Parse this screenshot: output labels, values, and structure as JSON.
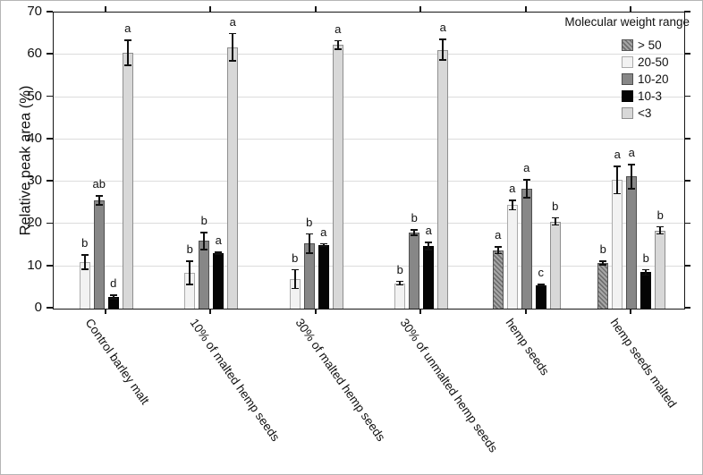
{
  "chart_data": {
    "type": "bar",
    "title": "",
    "ylabel": "Relative peak area (%)",
    "xlabel": "",
    "ylim": [
      0,
      70
    ],
    "ytick_step": 10,
    "yticks": [
      0,
      10,
      20,
      30,
      40,
      50,
      60,
      70
    ],
    "grid": true,
    "legend_title": "Molecular weight range",
    "legend_position": "top-right",
    "categories": [
      "Control barley malt",
      "10% of malted hemp seeds",
      "30% of malted hemp seeds",
      "30% of unmalted hemp seeds",
      "hemp seeds",
      "hemp seeds malted"
    ],
    "series": [
      {
        "name": "> 50",
        "color": "#a6a6a6",
        "hatch_color": "#6e6e6e",
        "border": "#555555",
        "values": [
          null,
          null,
          null,
          null,
          13.8,
          10.8
        ],
        "errors": [
          null,
          null,
          null,
          null,
          1.0,
          0.6
        ],
        "letters": [
          "",
          "",
          "",
          "",
          "a",
          "b"
        ]
      },
      {
        "name": "20-50",
        "color": "#f2f2f2",
        "hatch_color": null,
        "border": "#ababab",
        "values": [
          11.0,
          8.5,
          7.0,
          6.0,
          24.5,
          30.4
        ],
        "errors": [
          1.9,
          2.9,
          2.4,
          0.6,
          1.3,
          3.4
        ],
        "letters": [
          "b",
          "b",
          "b",
          "b",
          "a",
          "a"
        ]
      },
      {
        "name": "10-20",
        "color": "#878787",
        "hatch_color": null,
        "border": "#4f4f4f",
        "values": [
          25.6,
          16.0,
          15.4,
          18.0,
          28.3,
          31.2
        ],
        "errors": [
          1.2,
          2.2,
          2.4,
          0.8,
          2.3,
          3.0
        ],
        "letters": [
          "ab",
          "b",
          "b",
          "b",
          "a",
          "a"
        ]
      },
      {
        "name": "10-3",
        "color": "#050505",
        "hatch_color": null,
        "border": "#000000",
        "values": [
          2.8,
          13.1,
          15.0,
          14.8,
          5.6,
          8.6
        ],
        "errors": [
          0.6,
          0.4,
          0.5,
          1.0,
          0.3,
          0.8
        ],
        "letters": [
          "d",
          "a",
          "a",
          "a",
          "c",
          "b"
        ]
      },
      {
        "name": "<3",
        "color": "#d8d8d8",
        "hatch_color": null,
        "border": "#8f8f8f",
        "values": [
          60.5,
          61.8,
          62.3,
          61.2,
          20.6,
          18.5
        ],
        "errors": [
          3.1,
          3.4,
          1.2,
          2.6,
          1.0,
          1.0
        ],
        "letters": [
          "a",
          "a",
          "a",
          "a",
          "b",
          "b"
        ]
      }
    ]
  }
}
